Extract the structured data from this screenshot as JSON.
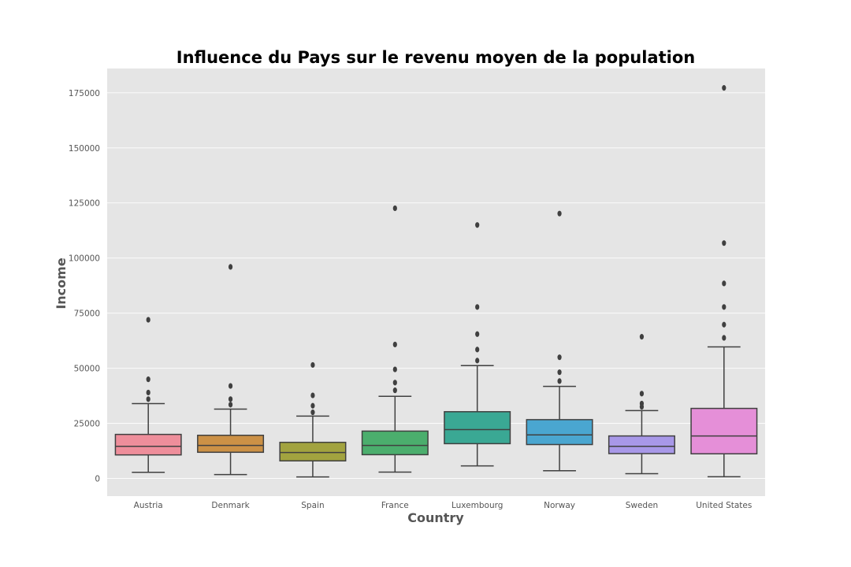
{
  "chart_data": {
    "type": "box",
    "title": "Influence du Pays sur le revenu moyen de la population",
    "xlabel": "Country",
    "ylabel": "Income",
    "ylim": [
      -8000,
      186000
    ],
    "yticks": [
      0,
      25000,
      50000,
      75000,
      100000,
      125000,
      150000,
      175000
    ],
    "ytick_labels": [
      "0",
      "25000",
      "50000",
      "75000",
      "100000",
      "125000",
      "150000",
      "175000"
    ],
    "grid": true,
    "legend": "none",
    "categories": [
      "Austria",
      "Denmark",
      "Spain",
      "France",
      "Luxembourg",
      "Norway",
      "Sweden",
      "United States"
    ],
    "boxes": [
      {
        "category": "Austria",
        "color": "#ee8e9b",
        "whisker_low": 2800,
        "q1": 10700,
        "median": 14600,
        "q3": 20000,
        "whisker_high": 34000,
        "outliers": [
          36000,
          39000,
          45000,
          72000
        ]
      },
      {
        "category": "Denmark",
        "color": "#cc9146",
        "whisker_low": 1800,
        "q1": 11900,
        "median": 15000,
        "q3": 19600,
        "whisker_high": 31500,
        "outliers": [
          33500,
          36000,
          42000,
          96000
        ]
      },
      {
        "category": "Spain",
        "color": "#a2a33f",
        "whisker_low": 700,
        "q1": 8000,
        "median": 11800,
        "q3": 16400,
        "whisker_high": 28300,
        "outliers": [
          30000,
          33000,
          37700,
          51500
        ]
      },
      {
        "category": "France",
        "color": "#4bae6d",
        "whisker_low": 2900,
        "q1": 10800,
        "median": 15000,
        "q3": 21500,
        "whisker_high": 37300,
        "outliers": [
          40000,
          43500,
          49500,
          60800,
          122600
        ]
      },
      {
        "category": "Luxembourg",
        "color": "#3aa894",
        "whisker_low": 5700,
        "q1": 15800,
        "median": 22200,
        "q3": 30300,
        "whisker_high": 51200,
        "outliers": [
          53500,
          58500,
          65500,
          77800,
          115000
        ]
      },
      {
        "category": "Norway",
        "color": "#4aa6d0",
        "whisker_low": 3500,
        "q1": 15400,
        "median": 19800,
        "q3": 26700,
        "whisker_high": 41800,
        "outliers": [
          44200,
          48200,
          55000,
          120200
        ]
      },
      {
        "category": "Sweden",
        "color": "#a898e8",
        "whisker_low": 2200,
        "q1": 11300,
        "median": 14600,
        "q3": 19300,
        "whisker_high": 30800,
        "outliers": [
          32500,
          34000,
          38500,
          64300
        ]
      },
      {
        "category": "United States",
        "color": "#e58fd8",
        "whisker_low": 800,
        "q1": 11200,
        "median": 19300,
        "q3": 31800,
        "whisker_high": 59700,
        "outliers": [
          63800,
          69800,
          77800,
          88500,
          106800,
          177200
        ]
      }
    ],
    "style": {
      "plot_bg": "#e5e5e5",
      "grid_color": "#ffffff",
      "line_color": "#404040"
    }
  }
}
